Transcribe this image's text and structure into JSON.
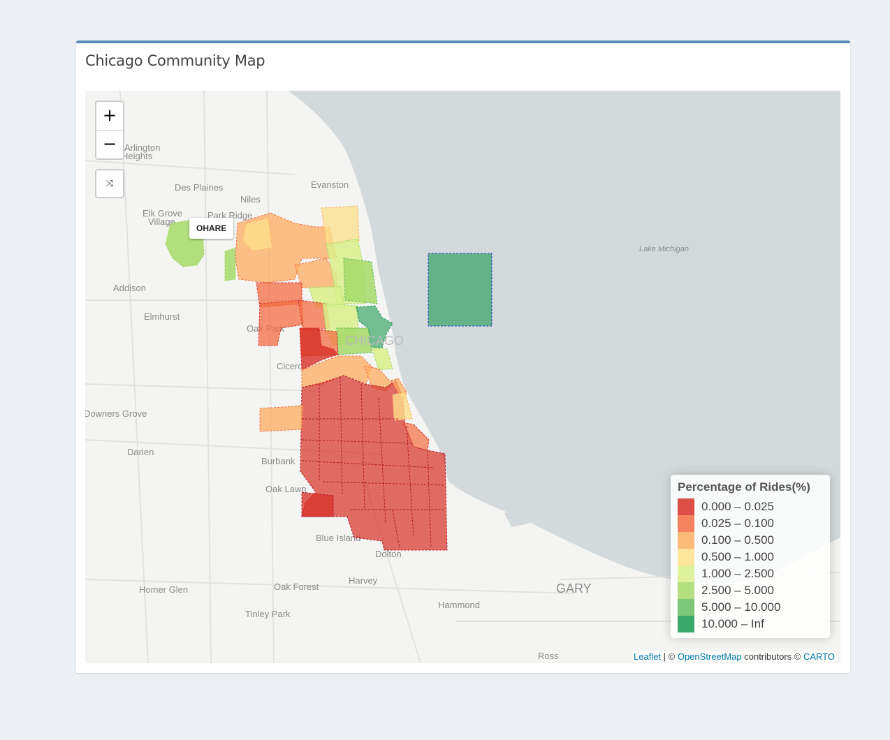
{
  "box": {
    "title": "Chicago Community Map"
  },
  "map": {
    "zoom_in_label": "+",
    "zoom_out_label": "−",
    "reset_label": "⤨",
    "tooltip_label": "OHARE",
    "lake_label": "Lake Michigan",
    "city_label": "CHICAGO",
    "places": [
      "Arlington Heights",
      "Des Plaines",
      "Evanston",
      "Niles",
      "Elk Grove Village",
      "Park Ridge",
      "Addison",
      "Elmhurst",
      "Oak Park",
      "Cicero",
      "Downers Grove",
      "Darien",
      "Burbank",
      "Oak Lawn",
      "Blue Island",
      "Dolton",
      "Harvey",
      "Oak Forest",
      "Homer Glen",
      "Tinley Park",
      "Hammond",
      "GARY",
      "Ross"
    ]
  },
  "legend": {
    "title": "Percentage of Rides(%)",
    "items": [
      {
        "label": "0.000 – 0.025",
        "color": "#d73027"
      },
      {
        "label": "0.025 – 0.100",
        "color": "#f46d43"
      },
      {
        "label": "0.100 – 0.500",
        "color": "#fdae61"
      },
      {
        "label": "0.500 – 1.000",
        "color": "#fee08b"
      },
      {
        "label": "1.000 – 2.500",
        "color": "#d9ef8b"
      },
      {
        "label": "2.500 – 5.000",
        "color": "#a6d96a"
      },
      {
        "label": "5.000 – 10.000",
        "color": "#66bd63"
      },
      {
        "label": "10.000 – Inf",
        "color": "#1a9850"
      }
    ]
  },
  "attribution": {
    "leaflet": "Leaflet",
    "sep": " | © ",
    "osm": "OpenStreetMap",
    "mid": " contributors © ",
    "carto": "CARTO"
  }
}
